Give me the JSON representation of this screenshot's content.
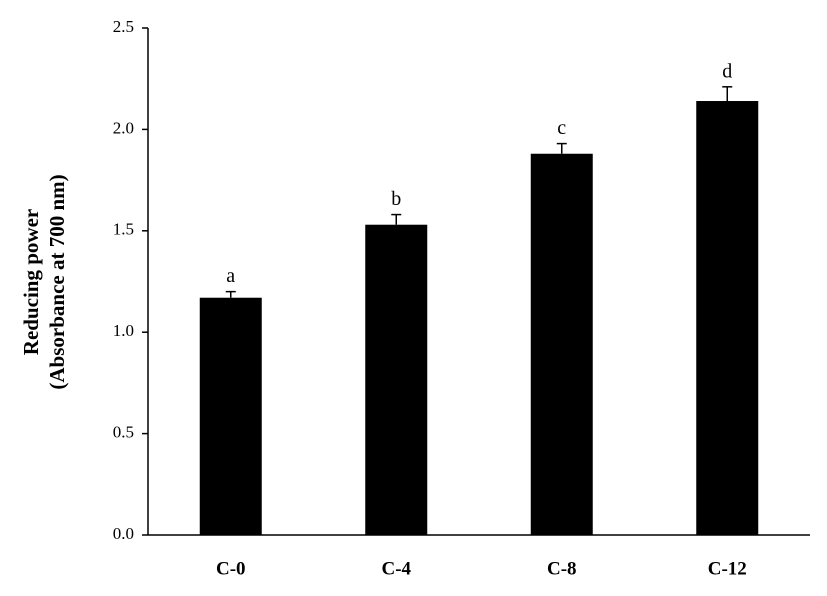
{
  "chart_data": {
    "type": "bar",
    "ylabel": [
      "Reducing power",
      "(Absorbance at 700 nm)"
    ],
    "categories": [
      "C-0",
      "C-4",
      "C-8",
      "C-12"
    ],
    "values": [
      1.17,
      1.53,
      1.88,
      2.14
    ],
    "errors": [
      0.03,
      0.05,
      0.05,
      0.07
    ],
    "letters": [
      "a",
      "b",
      "c",
      "d"
    ],
    "color": "#000000",
    "ylim": [
      0,
      2.5
    ],
    "yticks": [
      {
        "value": 0,
        "label": "0.0"
      },
      0.5,
      {
        "value": 1,
        "label": "1.0"
      },
      1.5,
      {
        "value": 2,
        "label": "2.0"
      },
      2.5
    ],
    "grid": false
  }
}
